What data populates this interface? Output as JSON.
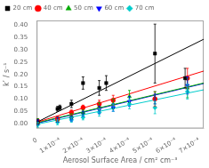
{
  "chart_data": {
    "type": "scatter",
    "xlabel": "Aerosol Surface Area / cm² cm⁻³",
    "ylabel": "k’ / s⁻¹",
    "xlim": [
      0,
      0.00072
    ],
    "ylim": [
      -0.02,
      0.42
    ],
    "xticks": [
      0,
      {
        "value": 0.0001,
        "label": "1×10⁻⁴"
      },
      {
        "value": 0.0002,
        "label": "2×10⁻⁴"
      },
      {
        "value": 0.0003,
        "label": "3×10⁻⁴"
      },
      {
        "value": 0.0004,
        "label": "4×10⁻⁴"
      },
      {
        "value": 0.0005,
        "label": "5×10⁻⁴"
      },
      {
        "value": 0.0006,
        "label": "6×10⁻⁴"
      },
      {
        "value": 0.0007,
        "label": "7×10⁻⁴"
      }
    ],
    "yticks": [
      {
        "value": 0.0,
        "label": "0.00"
      },
      0.05,
      {
        "value": 0.1,
        "label": "0.10"
      },
      0.15,
      {
        "value": 0.2,
        "label": "0.20"
      },
      0.25,
      {
        "value": 0.3,
        "label": "0.30"
      },
      0.35,
      {
        "value": 0.4,
        "label": "0.40"
      }
    ],
    "grid": false,
    "legend": "upper left",
    "series": [
      {
        "name": "20 cm",
        "color": "#000000",
        "marker": "square",
        "x": [
          5e-06,
          9e-05,
          0.0001,
          0.00015,
          0.0002,
          0.00027,
          0.0003,
          0.00051,
          0.00064
        ],
        "values": [
          0.005,
          0.06,
          0.065,
          0.08,
          0.165,
          0.145,
          0.165,
          0.285,
          0.185
        ],
        "yerr": [
          0.01,
          0.01,
          0.01,
          0.015,
          0.025,
          0.03,
          0.03,
          0.12,
          0.04
        ],
        "fit": {
          "x": [
            0,
            0.00072
          ],
          "values": [
            0.005,
            0.3434
          ]
        }
      },
      {
        "name": "40 cm",
        "color": "#ff0000",
        "marker": "circle",
        "x": [
          5e-06,
          9e-05,
          0.00015,
          0.0002,
          0.00027,
          0.00033,
          0.00051,
          0.00065
        ],
        "values": [
          0.01,
          0.02,
          0.045,
          0.065,
          0.08,
          0.095,
          0.1,
          0.185
        ],
        "yerr": [
          0.01,
          0.01,
          0.01,
          0.01,
          0.015,
          0.02,
          0.03,
          0.04
        ],
        "fit": {
          "x": [
            0,
            0.00072
          ],
          "values": [
            0.005,
            0.2138
          ]
        }
      },
      {
        "name": "50 cm",
        "color": "#00aa00",
        "marker": "triangle-up",
        "x": [
          5e-06,
          9e-05,
          0.00015,
          0.0002,
          0.00027,
          0.00033,
          0.0004,
          0.00051,
          0.00065
        ],
        "values": [
          0.01,
          0.015,
          0.03,
          0.045,
          0.07,
          0.08,
          0.11,
          0.105,
          0.145
        ],
        "yerr": [
          0.01,
          0.01,
          0.01,
          0.01,
          0.015,
          0.02,
          0.025,
          0.025,
          0.04
        ],
        "fit": {
          "x": [
            0,
            0.00072
          ],
          "values": [
            0.003,
            0.165
          ]
        }
      },
      {
        "name": "60 cm",
        "color": "#0000ff",
        "marker": "triangle-down",
        "x": [
          5e-06,
          9e-05,
          0.00015,
          0.0002,
          0.00027,
          0.00033,
          0.0004,
          0.00051,
          0.00065
        ],
        "values": [
          0.005,
          0.015,
          0.02,
          0.04,
          0.055,
          0.065,
          0.09,
          0.1,
          0.155
        ],
        "yerr": [
          0.01,
          0.01,
          0.01,
          0.01,
          0.015,
          0.015,
          0.02,
          0.02,
          0.035
        ],
        "fit": {
          "x": [
            0,
            0.00072
          ],
          "values": [
            0.001,
            0.163
          ]
        }
      },
      {
        "name": "70 cm",
        "color": "#00cccc",
        "marker": "diamond",
        "x": [
          5e-06,
          9e-05,
          0.00015,
          0.0002,
          0.00027,
          0.00033,
          0.0004,
          0.00051,
          0.00065
        ],
        "values": [
          -0.005,
          0.005,
          0.015,
          0.025,
          0.045,
          0.065,
          0.08,
          0.065,
          0.13
        ],
        "yerr": [
          0.01,
          0.01,
          0.01,
          0.01,
          0.015,
          0.015,
          0.02,
          0.025,
          0.03
        ],
        "fit": {
          "x": [
            0,
            0.00072
          ],
          "values": [
            -0.003,
            0.1374
          ]
        }
      }
    ]
  }
}
